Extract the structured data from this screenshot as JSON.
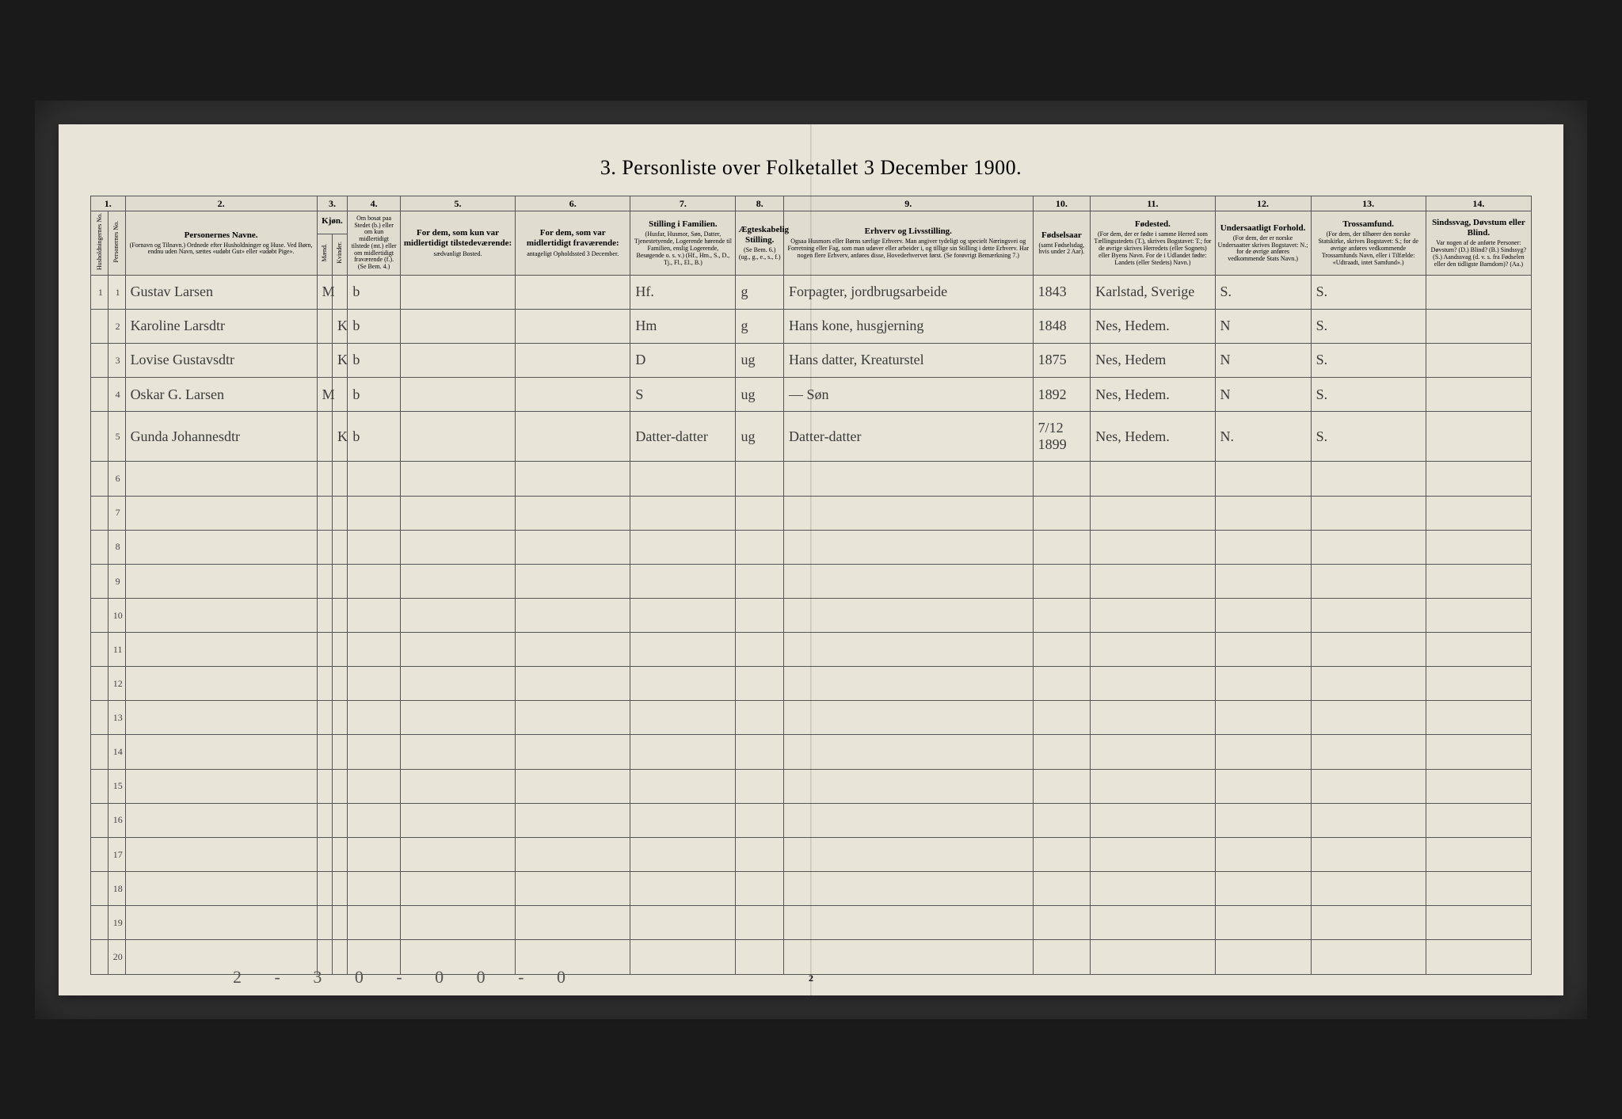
{
  "title": "3.  Personliste over Folketallet 3 December 1900.",
  "page_number": "2",
  "footer_scrawl": "2 - 3   0 - 0   0 - 0",
  "columns": {
    "c1": {
      "num": "1.",
      "vert": "Husholdningernes No."
    },
    "c1b": {
      "vert": "Personernes No."
    },
    "c2": {
      "num": "2.",
      "title": "Personernes Navne.",
      "sub": "(Fornavn og Tilnavn.) Ordnede efter Husholdninger og Huse. Ved Børn, endnu uden Navn, sættes «udøbt Gut» eller «udøbt Pige»."
    },
    "c3": {
      "num": "3.",
      "title": "Kjøn.",
      "sub_a": "Mænd.",
      "sub_b": "Kvinder."
    },
    "c4": {
      "num": "4.",
      "sub": "Om bosat paa Stedet (b.) eller om kun midlertidigt tilstede (mt.) eller om midlertidigt fraværende (f.). (Se Bem. 4.)"
    },
    "c5": {
      "num": "5.",
      "title": "For dem, som kun var midlertidigt tilstedeværende:",
      "sub": "sædvanligt Bosted."
    },
    "c6": {
      "num": "6.",
      "title": "For dem, som var midlertidigt fraværende:",
      "sub": "antageligt Opholdssted 3 December."
    },
    "c7": {
      "num": "7.",
      "title": "Stilling i Familien.",
      "sub": "(Husfar, Husmor, Søn, Datter, Tjenestetyende, Logerende hørende til Familien, enslig Logerende, Besøgende o. s. v.) (Hf., Hm., S., D., Tj., Fl., El., B.)"
    },
    "c8": {
      "num": "8.",
      "title": "Ægteskabelig Stilling.",
      "sub": "(Se Bem. 6.) (ug., g., e., s., f.)"
    },
    "c9": {
      "num": "9.",
      "title": "Erhverv og Livsstilling.",
      "sub": "Ogsaa Husmors eller Børns særlige Erhverv. Man angiver tydeligt og specielt Næringsvei og Forretning eller Fag, som man udøver eller arbeider i, og tillige sin Stilling i dette Erhverv. Har nogen flere Erhverv, anføres disse, Hovederhvervet først. (Se forøvrigt Bemærkning 7.)"
    },
    "c10": {
      "num": "10.",
      "title": "Fødselsaar",
      "sub": "(samt Fødselsdag, hvis under 2 Aar)."
    },
    "c11": {
      "num": "11.",
      "title": "Fødested.",
      "sub": "(For dem, der er fødte i samme Herred som Tællingsstedets (T.), skrives Bogstavet: T.; for de øvrige skrives Herredets (eller Sognets) eller Byens Navn. For de i Udlandet fødte: Landets (eller Stedets) Navn.)"
    },
    "c12": {
      "num": "12.",
      "title": "Undersaatligt Forhold.",
      "sub": "(For dem, der er norske Undersaatter skrives Bogstavet: N.; for de øvrige anføres vedkommende Stats Navn.)"
    },
    "c13": {
      "num": "13.",
      "title": "Trossamfund.",
      "sub": "(For dem, der tilhører den norske Statskirke, skrives Bogstavet: S.; for de øvrige anføres vedkommende Trossamfunds Navn, eller i Tilfælde: «Udtraadt, intet Samfund».)"
    },
    "c14": {
      "num": "14.",
      "title": "Sindssvag, Døvstum eller Blind.",
      "sub": "Var nogen af de anførte Personer: Døvstum? (D.) Blind? (B.) Sindssyg? (S.) Aandssvag (d. v. s. fra Fødselen eller den tidligste Barndom)? (Aa.)"
    }
  },
  "rows": [
    {
      "hh": "1",
      "pn": "1",
      "name": "Gustav Larsen",
      "sex_m": "M",
      "sex_k": "",
      "res": "b",
      "c5": "",
      "c6": "",
      "fam": "Hf.",
      "mar": "g",
      "occ": "Forpagter, jordbrugsarbeide",
      "yr": "1843",
      "birthplace": "Karlstad, Sverige",
      "nat": "S.",
      "rel": "S.",
      "c14": ""
    },
    {
      "hh": "",
      "pn": "2",
      "name": "Karoline Larsdtr",
      "sex_m": "",
      "sex_k": "K",
      "res": "b",
      "c5": "",
      "c6": "",
      "fam": "Hm",
      "mar": "g",
      "occ": "Hans kone, husgjerning",
      "yr": "1848",
      "birthplace": "Nes, Hedem.",
      "nat": "N",
      "rel": "S.",
      "c14": ""
    },
    {
      "hh": "",
      "pn": "3",
      "name": "Lovise Gustavsdtr",
      "sex_m": "",
      "sex_k": "K",
      "res": "b",
      "c5": "",
      "c6": "",
      "fam": "D",
      "mar": "ug",
      "occ": "Hans datter, Kreaturstel",
      "yr": "1875",
      "birthplace": "Nes, Hedem",
      "nat": "N",
      "rel": "S.",
      "c14": ""
    },
    {
      "hh": "",
      "pn": "4",
      "name": "Oskar G. Larsen",
      "sex_m": "M",
      "sex_k": "",
      "res": "b",
      "c5": "",
      "c6": "",
      "fam": "S",
      "mar": "ug",
      "occ": "—   Søn",
      "yr": "1892",
      "birthplace": "Nes, Hedem.",
      "nat": "N",
      "rel": "S.",
      "c14": ""
    },
    {
      "hh": "",
      "pn": "5",
      "name": "Gunda Johannesdtr",
      "sex_m": "",
      "sex_k": "K",
      "res": "b",
      "c5": "",
      "c6": "",
      "fam": "Datter-datter",
      "mar": "ug",
      "occ": "Datter-datter",
      "yr": "7/12 1899",
      "birthplace": "Nes, Hedem.",
      "nat": "N.",
      "rel": "S.",
      "c14": ""
    }
  ],
  "empty_rows": [
    6,
    7,
    8,
    9,
    10,
    11,
    12,
    13,
    14,
    15,
    16,
    17,
    18,
    19,
    20
  ],
  "colors": {
    "paper": "#e8e4d8",
    "ink": "#3a3a3a",
    "border": "#555555",
    "background": "#1a1a1a"
  }
}
